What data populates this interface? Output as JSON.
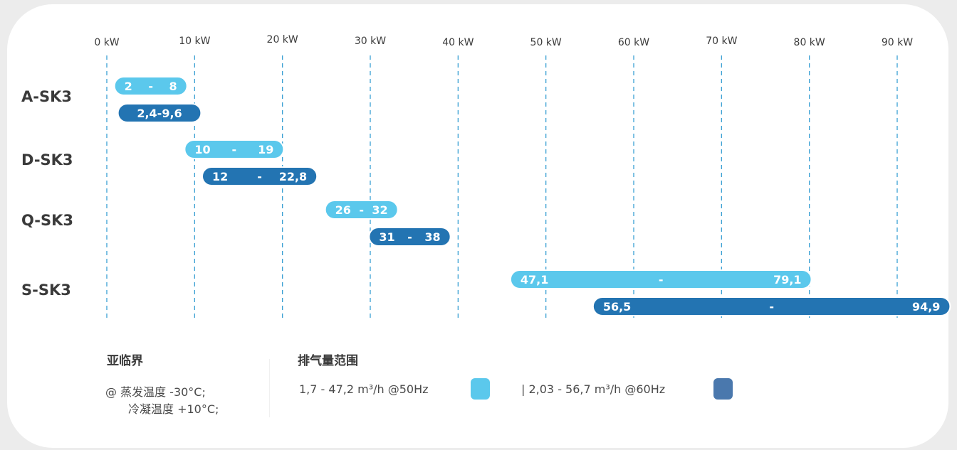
{
  "chart_data": {
    "type": "bar",
    "x_ticks": [
      "0 kW",
      "10 kW",
      "20 kW",
      "30 kW",
      "40 kW",
      "50 kW",
      "60 kW",
      "70 kW",
      "80 kW",
      "90 kW"
    ],
    "xlim": [
      0,
      90
    ],
    "grid": true,
    "rows": [
      {
        "label": "A-SK3",
        "bars": [
          {
            "series": "50Hz",
            "start": 2,
            "end": 8,
            "labels": [
              "2",
              "-",
              "8"
            ]
          },
          {
            "series": "60Hz",
            "start": 2.4,
            "end": 9.6,
            "labels": [
              "2,4-9,6"
            ]
          }
        ]
      },
      {
        "label": "D-SK3",
        "bars": [
          {
            "series": "50Hz",
            "start": 10,
            "end": 19,
            "labels": [
              "10",
              "-",
              "19"
            ]
          },
          {
            "series": "60Hz",
            "start": 12,
            "end": 22.8,
            "labels": [
              "12",
              "-",
              "22,8"
            ]
          }
        ]
      },
      {
        "label": "Q-SK3",
        "bars": [
          {
            "series": "50Hz",
            "start": 26,
            "end": 32,
            "labels": [
              "26",
              "-",
              "32"
            ]
          },
          {
            "series": "60Hz",
            "start": 31,
            "end": 38,
            "labels": [
              "31",
              "-",
              "38"
            ]
          }
        ]
      },
      {
        "label": "S-SK3",
        "bars": [
          {
            "series": "50Hz",
            "start": 47.1,
            "end": 79.1,
            "labels": [
              "47,1",
              "-",
              "79,1"
            ]
          },
          {
            "series": "60Hz",
            "start": 56.5,
            "end": 94.9,
            "labels": [
              "56,5",
              "-",
              "94,9"
            ]
          }
        ]
      }
    ],
    "series_colors": {
      "50Hz": "#5bc8ec",
      "60Hz": "#2374b2"
    }
  },
  "legend": {
    "left_title": "亚临界",
    "left_line1": "@ 蒸发温度 -30°C;",
    "left_line2": "冷凝温度 +10°C;",
    "right_title": "排气量范围",
    "item_50hz": "1,7 - 47,2 m³/h @50Hz",
    "item_60hz": "| 2,03 - 56,7 m³/h @60Hz",
    "swatch_50hz_color": "#5bc8ec",
    "swatch_60hz_color": "#4a78ad"
  }
}
